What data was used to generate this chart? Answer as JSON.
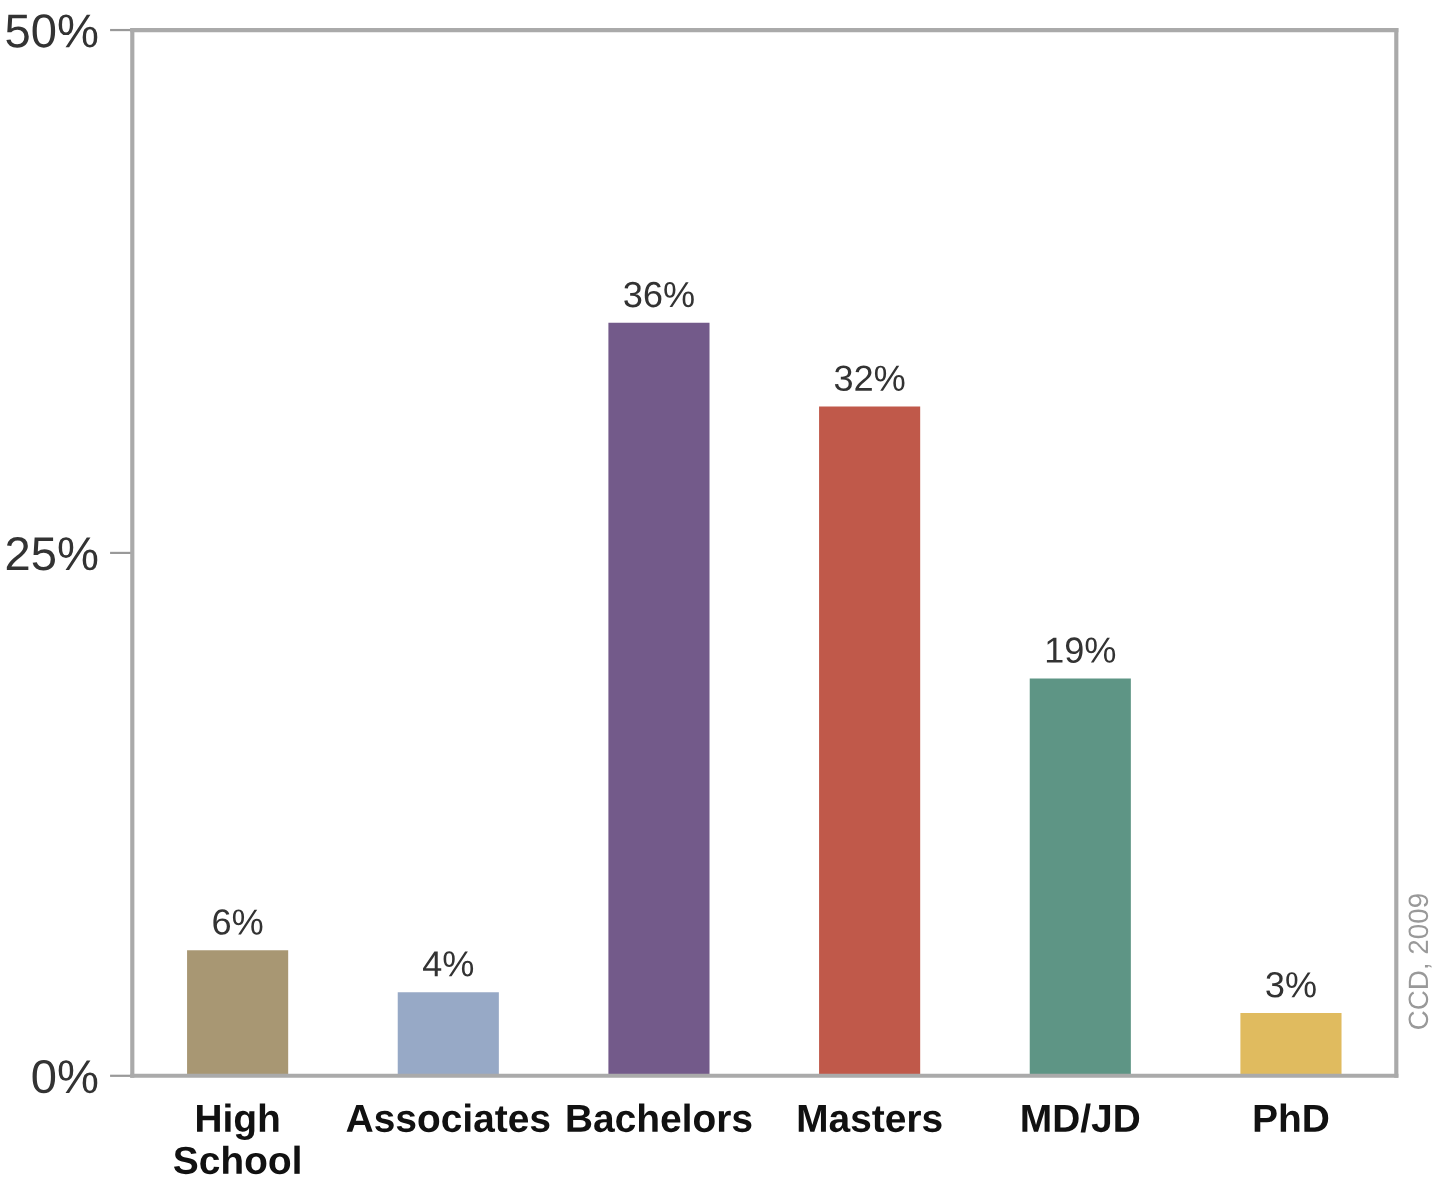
{
  "chart_data": {
    "type": "bar",
    "categories": [
      "High\nSchool",
      "Associates",
      "Bachelors",
      "Masters",
      "MD/JD",
      "PhD"
    ],
    "values": [
      6,
      4,
      36,
      32,
      19,
      3
    ],
    "value_labels": [
      "6%",
      "4%",
      "36%",
      "32%",
      "19%",
      "3%"
    ],
    "colors": [
      "#a89773",
      "#97a9c6",
      "#735a8a",
      "#c0594a",
      "#5e9585",
      "#e0bb5f"
    ],
    "ylim": [
      0,
      50
    ],
    "yticks": [
      {
        "value": 0,
        "label": "0%"
      },
      {
        "value": 25,
        "label": "25%"
      },
      {
        "value": 50,
        "label": "50%"
      }
    ],
    "grid": false,
    "annotations": [
      "CCD, 2009"
    ]
  }
}
